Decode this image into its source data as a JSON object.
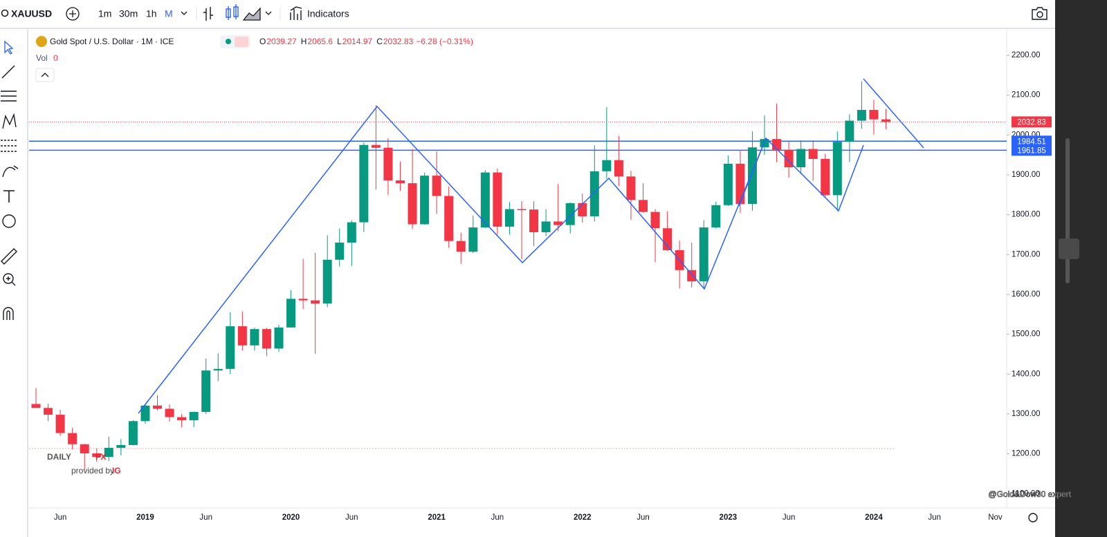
{
  "toolbar": {
    "symbol": "XAUUSD",
    "intervals": [
      "1m",
      "30m",
      "1h",
      "M"
    ],
    "indicators": "Indicators"
  },
  "legend": {
    "title": "Gold Spot / U.S. Dollar · 1M · ICE",
    "labels": [
      "O",
      "H",
      "L",
      "C"
    ],
    "change": "−6.28 (−0.31%)",
    "vol": "Vol",
    "vol_value": "0"
  },
  "logo": {
    "daily": "DAILY",
    "fx": "FX",
    "provided": "provided by",
    "ig": "IG"
  },
  "watermark": "@Gold&Dow30 expert",
  "chart_data": {
    "type": "candlestick",
    "categories": [
      null,
      null,
      "Jun",
      null,
      null,
      null,
      null,
      null,
      null,
      "2019",
      null,
      null,
      null,
      null,
      "Jun",
      null,
      null,
      null,
      null,
      null,
      null,
      "2020",
      null,
      null,
      null,
      null,
      "Jun",
      null,
      null,
      null,
      null,
      null,
      null,
      "2021",
      null,
      null,
      null,
      null,
      "Jun",
      null,
      null,
      null,
      null,
      null,
      null,
      "2022",
      null,
      null,
      null,
      null,
      "Jun",
      null,
      null,
      null,
      null,
      null,
      null,
      "2023",
      null,
      null,
      null,
      null,
      "Jun",
      null,
      null,
      null,
      null,
      null,
      null,
      "2024",
      null
    ],
    "future_ticks": [
      "Jun",
      "Nov"
    ],
    "open": [
      1325,
      1315,
      1298,
      1252,
      1224,
      1201,
      1192,
      1215,
      1222,
      1282,
      1321,
      1313,
      1292,
      1284,
      1305,
      1409,
      1413,
      1520,
      1472,
      1513,
      1464,
      1517,
      1589,
      1585,
      1577,
      1687,
      1730,
      1781,
      1975,
      1968,
      1886,
      1879,
      1776,
      1898,
      1847,
      1734,
      1707,
      1768,
      1906,
      1770,
      1814,
      1813,
      1756,
      1783,
      1774,
      1829,
      1796,
      1909,
      1937,
      1896,
      1837,
      1807,
      1766,
      1711,
      1661,
      1633,
      1768,
      1824,
      1928,
      1827,
      1969,
      1990,
      1963,
      1919,
      1965,
      1940,
      1849,
      1983,
      2036,
      2063,
      2039.27
    ],
    "high": [
      1365,
      1326,
      1310,
      1265,
      1225,
      1214,
      1243,
      1237,
      1284,
      1326,
      1347,
      1324,
      1300,
      1306,
      1439,
      1452,
      1555,
      1557,
      1517,
      1516,
      1524,
      1611,
      1689,
      1704,
      1748,
      1765,
      1786,
      1981,
      2075,
      1992,
      1933,
      1965,
      1906,
      1959,
      1871,
      1755,
      1798,
      1912,
      1916,
      1832,
      1834,
      1834,
      1814,
      1877,
      1831,
      1853,
      1974,
      2070,
      1998,
      1910,
      1879,
      1814,
      1808,
      1735,
      1730,
      1786,
      1833,
      1949,
      1960,
      2009,
      2049,
      2079,
      1983,
      1987,
      1987,
      1953,
      2009,
      2052,
      2135,
      2088,
      2065.6
    ],
    "low": [
      1315,
      1282,
      1245,
      1211,
      1160,
      1180,
      1182,
      1196,
      1221,
      1275,
      1309,
      1281,
      1266,
      1267,
      1300,
      1382,
      1400,
      1459,
      1459,
      1445,
      1456,
      1517,
      1563,
      1451,
      1568,
      1670,
      1671,
      1757,
      1863,
      1849,
      1860,
      1764,
      1775,
      1802,
      1717,
      1677,
      1704,
      1766,
      1750,
      1750,
      1688,
      1721,
      1746,
      1759,
      1753,
      1780,
      1783,
      1890,
      1872,
      1787,
      1805,
      1681,
      1709,
      1615,
      1617,
      1616,
      1765,
      1822,
      1804,
      1810,
      1950,
      1932,
      1893,
      1902,
      1885,
      1846,
      1810,
      1932,
      2016,
      2001,
      2014.97
    ],
    "close": [
      1315,
      1298,
      1252,
      1224,
      1201,
      1192,
      1215,
      1222,
      1282,
      1321,
      1313,
      1292,
      1284,
      1305,
      1409,
      1413,
      1520,
      1472,
      1513,
      1464,
      1517,
      1589,
      1585,
      1577,
      1687,
      1730,
      1781,
      1975,
      1968,
      1886,
      1879,
      1776,
      1898,
      1847,
      1734,
      1707,
      1768,
      1906,
      1770,
      1814,
      1813,
      1756,
      1783,
      1774,
      1829,
      1796,
      1909,
      1937,
      1896,
      1837,
      1807,
      1766,
      1711,
      1661,
      1633,
      1768,
      1824,
      1928,
      1827,
      1969,
      1990,
      1963,
      1919,
      1965,
      1940,
      1849,
      1983,
      2036,
      2063,
      2039.27,
      2032.83
    ],
    "up_color": "#089981",
    "down_color": "#f23645",
    "levels": [
      1984.51,
      1961.85
    ],
    "level_color": "#2962ff",
    "ylim": [
      1064,
      2266
    ],
    "yticks": [
      {
        "value": 1100,
        "label": "1100.00"
      },
      {
        "value": 1200,
        "label": "1200.00"
      },
      {
        "value": 1300,
        "label": "1300.00"
      },
      {
        "value": 1400,
        "label": "1400.00"
      },
      {
        "value": 1500,
        "label": "1500.00"
      },
      {
        "value": 1600,
        "label": "1600.00"
      },
      {
        "value": 1700,
        "label": "1700.00"
      },
      {
        "value": 1800,
        "label": "1800.00"
      },
      {
        "value": 1900,
        "label": "1900.00"
      },
      {
        "value": 2000,
        "label": "2000.00"
      },
      {
        "value": 2100,
        "label": "2100.00"
      },
      {
        "value": 2200,
        "label": "2200.00"
      }
    ]
  }
}
